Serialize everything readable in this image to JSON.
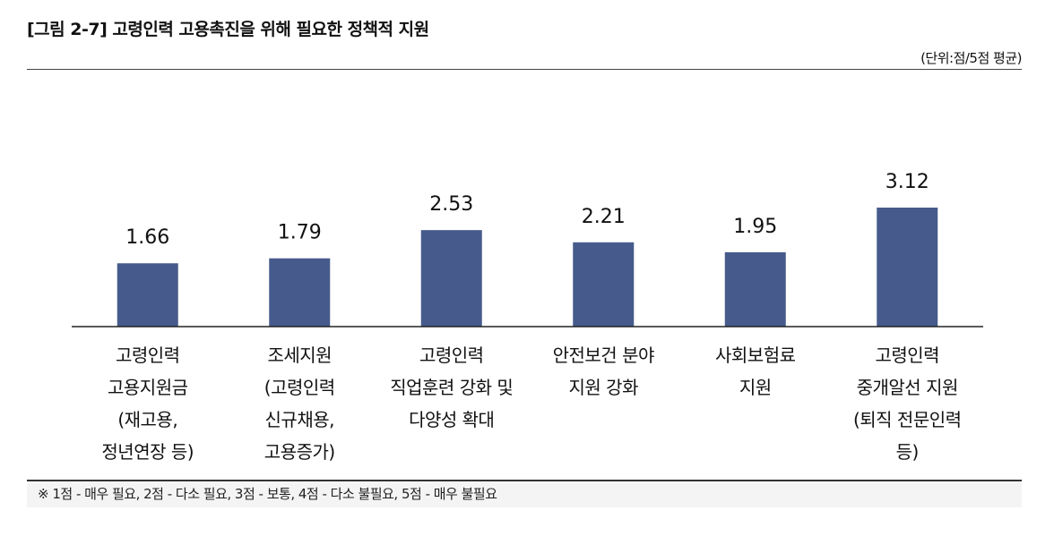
{
  "title": "[그림 2-7] 고령인력 고용촉진을 위해 필요한 정책적 지원",
  "unit_note": "(단위:점/5점 평균)",
  "footnote": "※ 1점 - 매우 필요, 2점 - 다소 필요, 3점 - 보통, 4점 - 다소 불필요, 5점 - 매우 불필요",
  "chart_data": {
    "type": "bar",
    "categories": [
      [
        "고령인력",
        "고용지원금",
        "(재고용,",
        "정년연장 등)"
      ],
      [
        "조세지원",
        "(고령인력",
        "신규채용,",
        "고용증가)"
      ],
      [
        "고령인력",
        "직업훈련 강화 및",
        "다양성 확대"
      ],
      [
        "안전보건 분야",
        "지원 강화"
      ],
      [
        "사회보험료",
        "지원"
      ],
      [
        "고령인력",
        "중개알선 지원",
        "(퇴직 전문인력",
        "등)"
      ]
    ],
    "values": [
      1.66,
      1.79,
      2.53,
      2.21,
      1.95,
      3.12
    ],
    "value_labels": [
      "1.66",
      "1.79",
      "2.53",
      "2.21",
      "1.95",
      "3.12"
    ],
    "ylim": [
      0,
      3.12
    ],
    "grid": false,
    "bar_color": "#465b8b"
  }
}
